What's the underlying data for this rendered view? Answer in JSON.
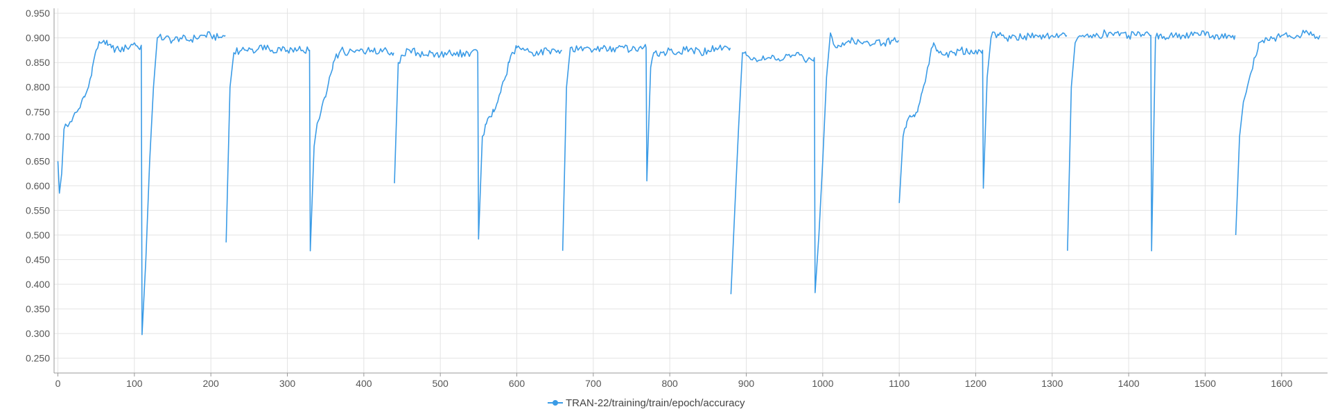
{
  "chart_data": {
    "type": "line",
    "title": "",
    "xlabel": "",
    "ylabel": "",
    "xlim": [
      -5,
      1660
    ],
    "ylim": [
      0.22,
      0.96
    ],
    "x_ticks": [
      0,
      100,
      200,
      300,
      400,
      500,
      600,
      700,
      800,
      900,
      1000,
      1100,
      1200,
      1300,
      1400,
      1500,
      1600
    ],
    "y_ticks": [
      0.25,
      0.3,
      0.35,
      0.4,
      0.45,
      0.5,
      0.55,
      0.6,
      0.65,
      0.7,
      0.75,
      0.8,
      0.85,
      0.9,
      0.95
    ],
    "y_tick_labels": [
      "0.250",
      "0.300",
      "0.350",
      "0.400",
      "0.450",
      "0.500",
      "0.550",
      "0.600",
      "0.650",
      "0.700",
      "0.750",
      "0.800",
      "0.850",
      "0.900",
      "0.950"
    ],
    "grid": true,
    "legend_position": "bottom-center",
    "series": [
      {
        "name": "TRAN-22/training/train/epoch/accuracy",
        "color": "#3a9be6",
        "segments": [
          [
            [
              0,
              0.65
            ],
            [
              2,
              0.585
            ],
            [
              5,
              0.625
            ],
            [
              8,
              0.715
            ],
            [
              10,
              0.725
            ],
            [
              13,
              0.72
            ],
            [
              16,
              0.73
            ],
            [
              20,
              0.74
            ],
            [
              25,
              0.75
            ],
            [
              30,
              0.765
            ],
            [
              35,
              0.78
            ],
            [
              40,
              0.8
            ],
            [
              45,
              0.84
            ],
            [
              50,
              0.875
            ],
            [
              55,
              0.89
            ],
            [
              60,
              0.895
            ],
            [
              65,
              0.885
            ],
            [
              70,
              0.88
            ],
            [
              80,
              0.875
            ],
            [
              90,
              0.88
            ],
            [
              100,
              0.89
            ],
            [
              105,
              0.88
            ],
            [
              109,
              0.885
            ],
            [
              110,
              0.298
            ],
            [
              115,
              0.45
            ],
            [
              120,
              0.65
            ],
            [
              125,
              0.8
            ],
            [
              130,
              0.9
            ],
            [
              140,
              0.9
            ],
            [
              150,
              0.895
            ],
            [
              160,
              0.9
            ],
            [
              170,
              0.895
            ],
            [
              180,
              0.9
            ],
            [
              190,
              0.905
            ],
            [
              200,
              0.905
            ],
            [
              210,
              0.9
            ],
            [
              219,
              0.905
            ]
          ],
          [
            [
              220,
              0.485
            ],
            [
              225,
              0.8
            ],
            [
              230,
              0.87
            ],
            [
              240,
              0.875
            ],
            [
              250,
              0.88
            ],
            [
              260,
              0.875
            ],
            [
              270,
              0.885
            ],
            [
              280,
              0.875
            ],
            [
              290,
              0.88
            ],
            [
              300,
              0.875
            ],
            [
              310,
              0.88
            ],
            [
              320,
              0.875
            ],
            [
              329,
              0.875
            ],
            [
              330,
              0.468
            ],
            [
              335,
              0.68
            ],
            [
              340,
              0.73
            ],
            [
              345,
              0.76
            ],
            [
              350,
              0.78
            ],
            [
              355,
              0.82
            ],
            [
              360,
              0.85
            ],
            [
              370,
              0.875
            ],
            [
              380,
              0.87
            ],
            [
              390,
              0.875
            ],
            [
              400,
              0.87
            ],
            [
              410,
              0.875
            ],
            [
              420,
              0.87
            ],
            [
              430,
              0.875
            ],
            [
              439,
              0.87
            ]
          ],
          [
            [
              440,
              0.605
            ],
            [
              445,
              0.85
            ],
            [
              450,
              0.865
            ],
            [
              460,
              0.875
            ],
            [
              470,
              0.87
            ],
            [
              480,
              0.865
            ],
            [
              490,
              0.87
            ],
            [
              500,
              0.865
            ],
            [
              510,
              0.87
            ],
            [
              520,
              0.865
            ],
            [
              530,
              0.87
            ],
            [
              540,
              0.87
            ],
            [
              549,
              0.87
            ],
            [
              550,
              0.492
            ],
            [
              555,
              0.7
            ],
            [
              560,
              0.725
            ],
            [
              565,
              0.74
            ],
            [
              570,
              0.75
            ],
            [
              575,
              0.77
            ],
            [
              580,
              0.8
            ],
            [
              585,
              0.82
            ],
            [
              590,
              0.85
            ],
            [
              595,
              0.87
            ],
            [
              600,
              0.88
            ],
            [
              610,
              0.875
            ],
            [
              620,
              0.87
            ],
            [
              630,
              0.87
            ],
            [
              640,
              0.875
            ],
            [
              650,
              0.875
            ],
            [
              659,
              0.875
            ]
          ],
          [
            [
              660,
              0.468
            ],
            [
              665,
              0.8
            ],
            [
              670,
              0.88
            ],
            [
              680,
              0.875
            ],
            [
              690,
              0.88
            ],
            [
              700,
              0.875
            ],
            [
              710,
              0.88
            ],
            [
              720,
              0.875
            ],
            [
              730,
              0.88
            ],
            [
              740,
              0.88
            ],
            [
              750,
              0.875
            ],
            [
              760,
              0.88
            ],
            [
              769,
              0.88
            ],
            [
              770,
              0.61
            ],
            [
              775,
              0.84
            ],
            [
              780,
              0.87
            ],
            [
              790,
              0.87
            ],
            [
              800,
              0.875
            ],
            [
              810,
              0.87
            ],
            [
              820,
              0.875
            ],
            [
              830,
              0.875
            ],
            [
              840,
              0.87
            ],
            [
              850,
              0.875
            ],
            [
              860,
              0.88
            ],
            [
              870,
              0.88
            ],
            [
              879,
              0.88
            ]
          ],
          [
            [
              880,
              0.38
            ],
            [
              885,
              0.55
            ],
            [
              890,
              0.72
            ],
            [
              895,
              0.87
            ],
            [
              900,
              0.865
            ],
            [
              910,
              0.86
            ],
            [
              920,
              0.855
            ],
            [
              930,
              0.86
            ],
            [
              940,
              0.855
            ],
            [
              950,
              0.86
            ],
            [
              960,
              0.865
            ],
            [
              970,
              0.865
            ],
            [
              980,
              0.855
            ],
            [
              989,
              0.86
            ],
            [
              990,
              0.383
            ],
            [
              995,
              0.5
            ],
            [
              1000,
              0.65
            ],
            [
              1005,
              0.82
            ],
            [
              1010,
              0.91
            ],
            [
              1015,
              0.885
            ],
            [
              1020,
              0.885
            ],
            [
              1030,
              0.89
            ],
            [
              1040,
              0.895
            ],
            [
              1050,
              0.89
            ],
            [
              1060,
              0.89
            ],
            [
              1070,
              0.895
            ],
            [
              1080,
              0.89
            ],
            [
              1090,
              0.895
            ],
            [
              1099,
              0.895
            ]
          ],
          [
            [
              1100,
              0.565
            ],
            [
              1105,
              0.7
            ],
            [
              1110,
              0.73
            ],
            [
              1115,
              0.74
            ],
            [
              1120,
              0.74
            ],
            [
              1125,
              0.76
            ],
            [
              1130,
              0.79
            ],
            [
              1135,
              0.82
            ],
            [
              1140,
              0.86
            ],
            [
              1145,
              0.89
            ],
            [
              1150,
              0.875
            ],
            [
              1160,
              0.865
            ],
            [
              1170,
              0.87
            ],
            [
              1180,
              0.875
            ],
            [
              1190,
              0.87
            ],
            [
              1200,
              0.875
            ],
            [
              1209,
              0.875
            ],
            [
              1210,
              0.595
            ],
            [
              1215,
              0.82
            ],
            [
              1220,
              0.9
            ],
            [
              1225,
              0.91
            ],
            [
              1230,
              0.905
            ],
            [
              1240,
              0.9
            ],
            [
              1250,
              0.905
            ],
            [
              1260,
              0.9
            ],
            [
              1270,
              0.905
            ],
            [
              1280,
              0.905
            ],
            [
              1290,
              0.9
            ],
            [
              1300,
              0.905
            ],
            [
              1310,
              0.905
            ],
            [
              1319,
              0.905
            ]
          ],
          [
            [
              1320,
              0.468
            ],
            [
              1325,
              0.8
            ],
            [
              1330,
              0.89
            ],
            [
              1340,
              0.905
            ],
            [
              1350,
              0.905
            ],
            [
              1360,
              0.905
            ],
            [
              1370,
              0.91
            ],
            [
              1380,
              0.905
            ],
            [
              1390,
              0.91
            ],
            [
              1400,
              0.905
            ],
            [
              1410,
              0.905
            ],
            [
              1420,
              0.905
            ],
            [
              1429,
              0.905
            ],
            [
              1430,
              0.468
            ],
            [
              1435,
              0.9
            ],
            [
              1440,
              0.905
            ],
            [
              1450,
              0.9
            ],
            [
              1460,
              0.905
            ],
            [
              1470,
              0.905
            ],
            [
              1480,
              0.905
            ],
            [
              1490,
              0.91
            ],
            [
              1500,
              0.905
            ],
            [
              1510,
              0.905
            ],
            [
              1520,
              0.9
            ],
            [
              1530,
              0.905
            ],
            [
              1539,
              0.905
            ]
          ],
          [
            [
              1540,
              0.5
            ],
            [
              1545,
              0.7
            ],
            [
              1550,
              0.77
            ],
            [
              1555,
              0.8
            ],
            [
              1560,
              0.83
            ],
            [
              1565,
              0.86
            ],
            [
              1570,
              0.89
            ],
            [
              1575,
              0.895
            ],
            [
              1580,
              0.9
            ],
            [
              1590,
              0.9
            ],
            [
              1600,
              0.905
            ],
            [
              1610,
              0.905
            ],
            [
              1620,
              0.905
            ],
            [
              1630,
              0.91
            ],
            [
              1640,
              0.905
            ],
            [
              1650,
              0.905
            ]
          ]
        ]
      }
    ]
  }
}
